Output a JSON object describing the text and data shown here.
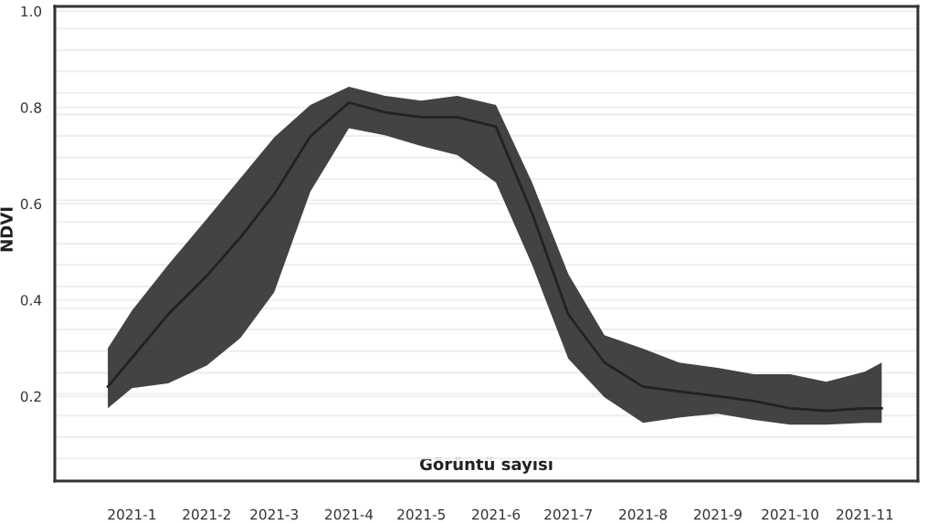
{
  "chart_data": {
    "type": "line",
    "xlabel": "Görüntü sayısı",
    "ylabel": "NDVI",
    "x": [
      "2020-12-22",
      "2021-01-01",
      "2021-01-16",
      "2021-02-01",
      "2021-02-15",
      "2021-03-01",
      "2021-03-16",
      "2021-04-01",
      "2021-04-16",
      "2021-05-01",
      "2021-05-16",
      "2021-06-01",
      "2021-06-16",
      "2021-07-01",
      "2021-07-16",
      "2021-08-01",
      "2021-08-16",
      "2021-09-01",
      "2021-09-16",
      "2021-10-01",
      "2021-10-16",
      "2021-11-01",
      "2021-11-08"
    ],
    "series": [
      {
        "color": "#222222",
        "values": [
          0.22,
          0.28,
          0.37,
          0.45,
          0.53,
          0.62,
          0.74,
          0.81,
          0.79,
          0.78,
          0.78,
          0.76,
          0.58,
          0.37,
          0.27,
          0.22,
          0.21,
          0.2,
          0.19,
          0.175,
          0.17,
          0.175,
          0.175
        ],
        "lower": [
          0.175,
          0.217,
          0.227,
          0.264,
          0.321,
          0.416,
          0.625,
          0.757,
          0.742,
          0.72,
          0.701,
          0.644,
          0.473,
          0.278,
          0.198,
          0.145,
          0.156,
          0.164,
          0.151,
          0.141,
          0.141,
          0.145,
          0.145
        ],
        "upper": [
          0.3,
          0.378,
          0.473,
          0.568,
          0.653,
          0.738,
          0.805,
          0.843,
          0.824,
          0.814,
          0.824,
          0.805,
          0.644,
          0.454,
          0.327,
          0.299,
          0.27,
          0.259,
          0.246,
          0.246,
          0.23,
          0.251,
          0.27
        ]
      }
    ],
    "xlim": [
      "2020-11-30",
      "2021-11-23"
    ],
    "ylim": [
      0.024,
      1.01
    ],
    "xticks": [
      {
        "value": "2021-01-01",
        "label": "2021-1"
      },
      {
        "value": "2021-02-01",
        "label": "2021-2"
      },
      {
        "value": "2021-03-01",
        "label": "2021-3"
      },
      {
        "value": "2021-04-01",
        "label": "2021-4"
      },
      {
        "value": "2021-05-01",
        "label": "2021-5"
      },
      {
        "value": "2021-06-01",
        "label": "2021-6"
      },
      {
        "value": "2021-07-01",
        "label": "2021-7"
      },
      {
        "value": "2021-08-01",
        "label": "2021-8"
      },
      {
        "value": "2021-09-01",
        "label": "2021-9"
      },
      {
        "value": "2021-10-01",
        "label": "2021-10"
      },
      {
        "value": "2021-11-01",
        "label": "2021-11"
      }
    ],
    "yticks": [
      0.2,
      0.4,
      0.6,
      0.8,
      {
        "value": 1.0,
        "label": "1.0"
      },
      {
        "value": 0.071,
        "label": null
      },
      {
        "value": 0.115,
        "label": null
      },
      {
        "value": 0.16,
        "label": null
      },
      {
        "value": 0.205,
        "label": null
      },
      {
        "value": 0.249,
        "label": null
      },
      {
        "value": 0.294,
        "label": null
      },
      {
        "value": 0.339,
        "label": null
      },
      {
        "value": 0.383,
        "label": null
      },
      {
        "value": 0.428,
        "label": null
      },
      {
        "value": 0.473,
        "label": null
      },
      {
        "value": 0.517,
        "label": null
      },
      {
        "value": 0.562,
        "label": null
      },
      {
        "value": 0.607,
        "label": null
      },
      {
        "value": 0.651,
        "label": null
      },
      {
        "value": 0.696,
        "label": null
      },
      {
        "value": 0.741,
        "label": null
      },
      {
        "value": 0.785,
        "label": null
      },
      {
        "value": 0.83,
        "label": null
      },
      {
        "value": 0.875,
        "label": null
      },
      {
        "value": 0.919,
        "label": null
      },
      {
        "value": 0.964,
        "label": null
      }
    ],
    "grid": "y"
  }
}
